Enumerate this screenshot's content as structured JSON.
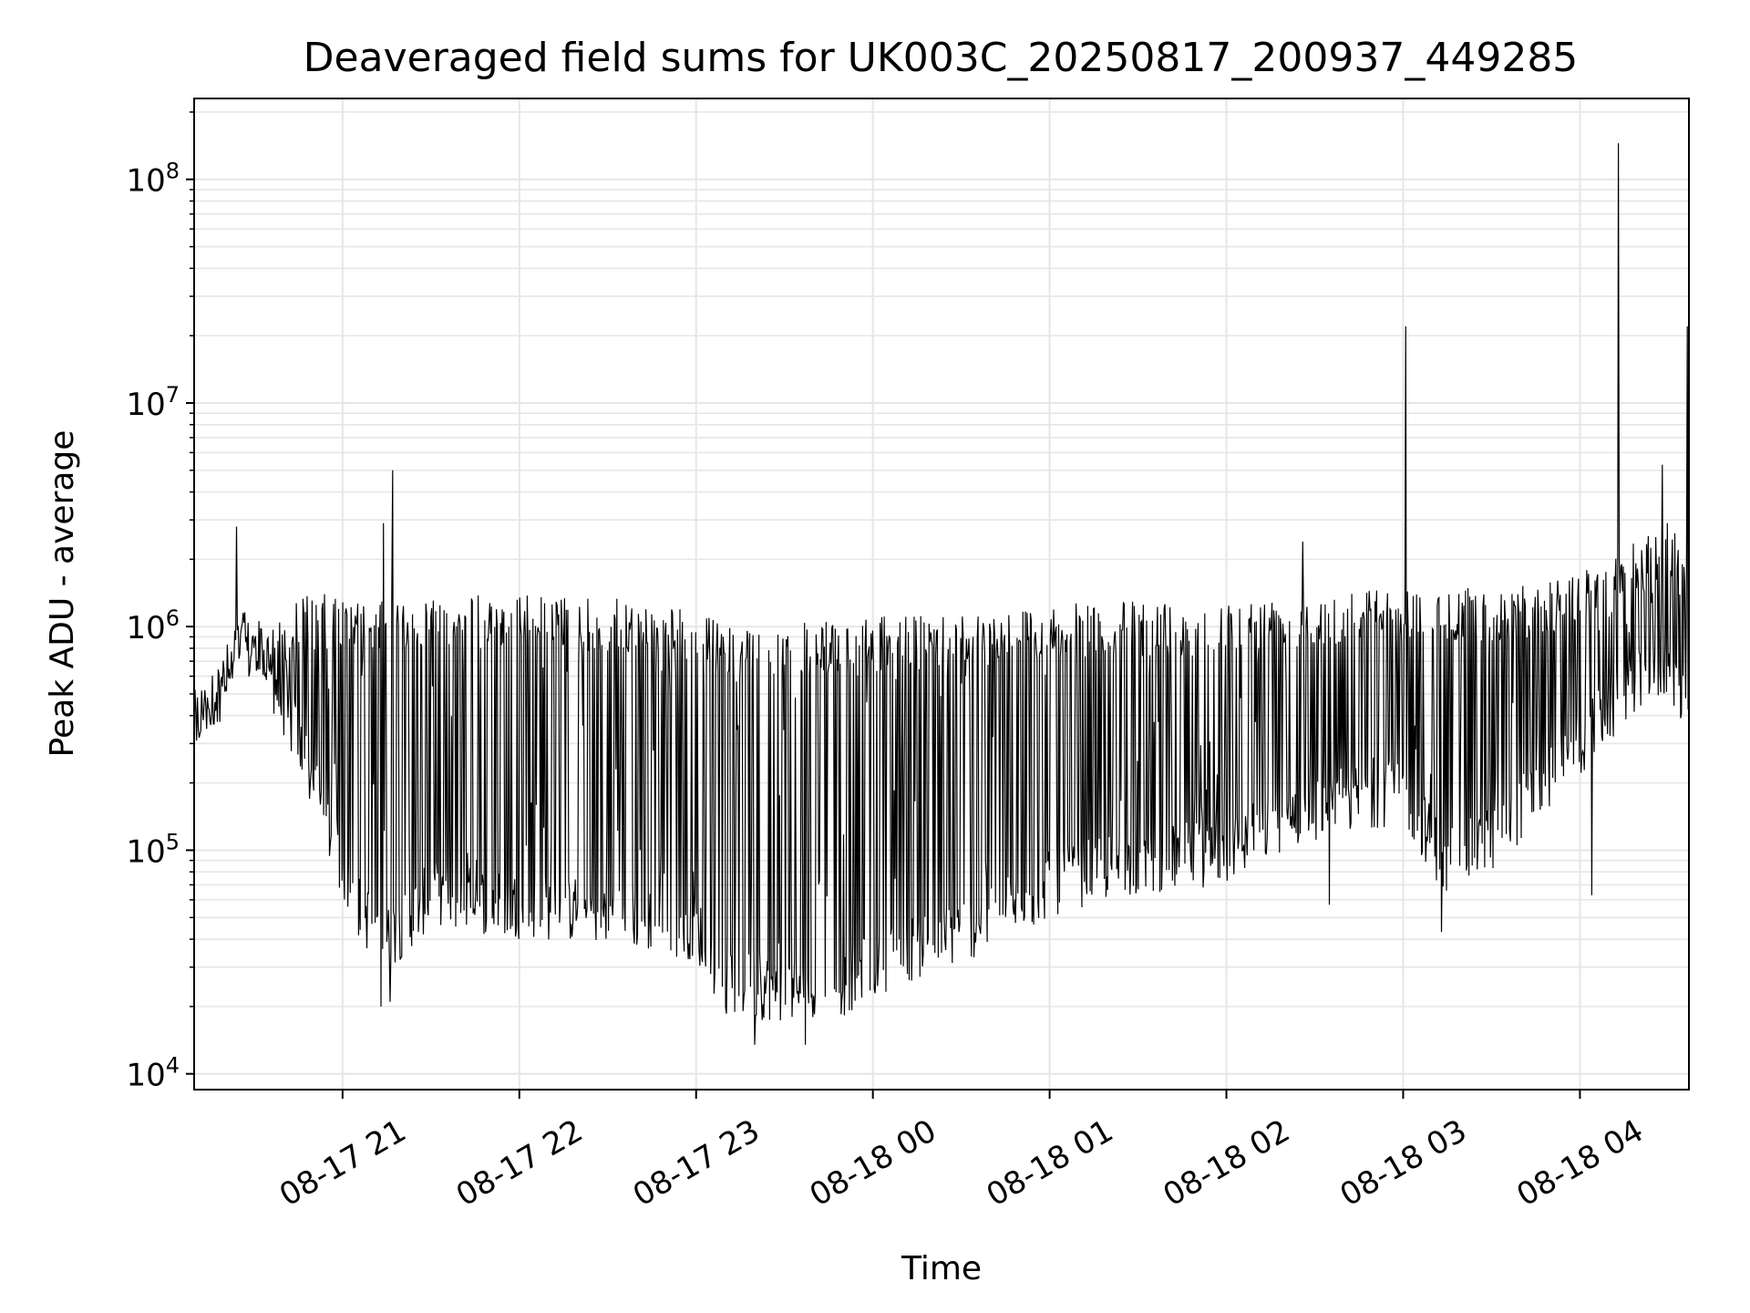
{
  "chart_data": {
    "type": "line",
    "title": "Deaveraged field sums for UK003C_20250817_200937_449285",
    "xlabel": "Time",
    "ylabel": "Peak ADU - average",
    "yscale": "log",
    "ylim": [
      8500,
      230000000
    ],
    "xlim": [
      "2025-08-17 20:09:37",
      "2025-08-18 04:37:00"
    ],
    "grid": true,
    "line_color": "#000000",
    "grid_color": "#e6e6e6",
    "x_ticks": [
      {
        "t": "2025-08-17 21:00",
        "label": "08-17 21"
      },
      {
        "t": "2025-08-17 22:00",
        "label": "08-17 22"
      },
      {
        "t": "2025-08-17 23:00",
        "label": "08-17 23"
      },
      {
        "t": "2025-08-18 00:00",
        "label": "08-18 00"
      },
      {
        "t": "2025-08-18 01:00",
        "label": "08-18 01"
      },
      {
        "t": "2025-08-18 02:00",
        "label": "08-18 02"
      },
      {
        "t": "2025-08-18 03:00",
        "label": "08-18 03"
      },
      {
        "t": "2025-08-18 04:00",
        "label": "08-18 04"
      }
    ],
    "y_ticks": [
      {
        "value": 10000,
        "label": "10",
        "exp": "4"
      },
      {
        "value": 100000,
        "label": "10",
        "exp": "5"
      },
      {
        "value": 1000000,
        "label": "10",
        "exp": "6"
      },
      {
        "value": 10000000,
        "label": "10",
        "exp": "7"
      },
      {
        "value": 100000000,
        "label": "10",
        "exp": "8"
      }
    ],
    "envelope": [
      {
        "t": "2025-08-17 20:09:37",
        "low": 260000,
        "high": 500000
      },
      {
        "t": "2025-08-17 20:20:00",
        "low": 400000,
        "high": 700000
      },
      {
        "t": "2025-08-17 20:25:00",
        "low": 600000,
        "high": 1200000
      },
      {
        "t": "2025-08-17 20:35:00",
        "low": 450000,
        "high": 1000000
      },
      {
        "t": "2025-08-17 20:45:00",
        "low": 220000,
        "high": 1400000
      },
      {
        "t": "2025-08-17 20:55:00",
        "low": 90000,
        "high": 1400000
      },
      {
        "t": "2025-08-17 21:05:00",
        "low": 40000,
        "high": 1300000
      },
      {
        "t": "2025-08-17 21:15:00",
        "low": 28000,
        "high": 1300000
      },
      {
        "t": "2025-08-17 21:30:00",
        "low": 45000,
        "high": 1400000
      },
      {
        "t": "2025-08-17 22:00:00",
        "low": 40000,
        "high": 1400000
      },
      {
        "t": "2025-08-17 22:30:00",
        "low": 38000,
        "high": 1350000
      },
      {
        "t": "2025-08-17 23:00:00",
        "low": 32000,
        "high": 1200000
      },
      {
        "t": "2025-08-17 23:10:00",
        "low": 18000,
        "high": 1000000
      },
      {
        "t": "2025-08-17 23:30:00",
        "low": 17000,
        "high": 1050000
      },
      {
        "t": "2025-08-17 23:50:00",
        "low": 18000,
        "high": 1050000
      },
      {
        "t": "2025-08-18 00:00:00",
        "low": 22000,
        "high": 1100000
      },
      {
        "t": "2025-08-18 00:20:00",
        "low": 28000,
        "high": 1150000
      },
      {
        "t": "2025-08-18 00:40:00",
        "low": 35000,
        "high": 1200000
      },
      {
        "t": "2025-08-18 01:00:00",
        "low": 50000,
        "high": 1250000
      },
      {
        "t": "2025-08-18 01:20:00",
        "low": 60000,
        "high": 1300000
      },
      {
        "t": "2025-08-18 01:40:00",
        "low": 65000,
        "high": 1300000
      },
      {
        "t": "2025-08-18 02:00:00",
        "low": 70000,
        "high": 1300000
      },
      {
        "t": "2025-08-18 02:20:00",
        "low": 100000,
        "high": 1400000
      },
      {
        "t": "2025-08-18 02:40:00",
        "low": 120000,
        "high": 1500000
      },
      {
        "t": "2025-08-18 03:00:00",
        "low": 130000,
        "high": 1500000
      },
      {
        "t": "2025-08-18 03:15:00",
        "low": 60000,
        "high": 1500000
      },
      {
        "t": "2025-08-18 03:30:00",
        "low": 80000,
        "high": 1500000
      },
      {
        "t": "2025-08-18 03:50:00",
        "low": 150000,
        "high": 1600000
      },
      {
        "t": "2025-08-18 04:10:00",
        "low": 300000,
        "high": 2000000
      },
      {
        "t": "2025-08-18 04:30:00",
        "low": 500000,
        "high": 3000000
      },
      {
        "t": "2025-08-18 04:37:00",
        "low": 300000,
        "high": 2000000
      }
    ],
    "spikes": [
      {
        "t": "2025-08-17 20:24:00",
        "value": 2800000
      },
      {
        "t": "2025-08-17 21:14:00",
        "value": 2900000
      },
      {
        "t": "2025-08-17 21:13:00",
        "value": 20000
      },
      {
        "t": "2025-08-17 21:17:00",
        "value": 5000000
      },
      {
        "t": "2025-08-17 21:16:00",
        "value": 21000
      },
      {
        "t": "2025-08-17 23:20:00",
        "value": 13500
      },
      {
        "t": "2025-08-17 23:37:00",
        "value": 13500
      },
      {
        "t": "2025-08-18 02:26:00",
        "value": 2400000
      },
      {
        "t": "2025-08-18 02:35:00",
        "value": 57000
      },
      {
        "t": "2025-08-18 03:01:00",
        "value": 22000000
      },
      {
        "t": "2025-08-18 03:13:00",
        "value": 43000
      },
      {
        "t": "2025-08-18 04:04:00",
        "value": 63000
      },
      {
        "t": "2025-08-18 04:13:00",
        "value": 145000000
      },
      {
        "t": "2025-08-18 04:28:00",
        "value": 5300000
      },
      {
        "t": "2025-08-18 04:36:30",
        "value": 22000000
      }
    ]
  }
}
